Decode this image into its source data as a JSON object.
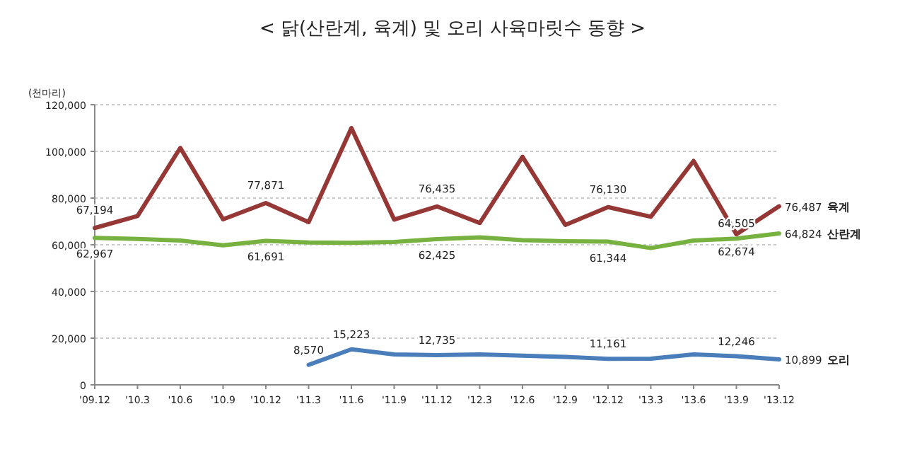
{
  "chart_data": {
    "type": "line",
    "title": "< 닭(산란계, 육계) 및 오리 사육마릿수 동향 >",
    "ylabel": "(천마리)",
    "categories": [
      "'09.12",
      "'10.3",
      "'10.6",
      "'10.9",
      "'10.12",
      "'11.3",
      "'11.6",
      "'11.9",
      "'11.12",
      "'12.3",
      "'12.6",
      "'12.9",
      "'12.12",
      "'13.3",
      "'13.6",
      "'13.9",
      "'13.12"
    ],
    "ylim": [
      0,
      120000
    ],
    "yticks": [
      {
        "value": 0,
        "label": "0"
      },
      {
        "value": 20000,
        "label": "20,000"
      },
      {
        "value": 40000,
        "label": "40,000"
      },
      {
        "value": 60000,
        "label": "60,000"
      },
      {
        "value": 80000,
        "label": "80,000"
      },
      {
        "value": 100000,
        "label": "100,000"
      },
      {
        "value": 120000,
        "label": "120,000"
      }
    ],
    "grid": "y",
    "series": [
      {
        "name": "육계",
        "color": "#953735",
        "values": [
          67194,
          72300,
          101500,
          70900,
          77871,
          69700,
          110000,
          70800,
          76435,
          69300,
          97700,
          68500,
          76130,
          72000,
          95900,
          64505,
          76487
        ],
        "value_labels": [
          "67,194",
          null,
          null,
          null,
          "77,871",
          null,
          null,
          null,
          "76,435",
          null,
          null,
          null,
          "76,130",
          null,
          null,
          "64,505",
          "76,487"
        ]
      },
      {
        "name": "산란계",
        "color": "#77b140",
        "values": [
          62967,
          62500,
          61800,
          59800,
          61691,
          61000,
          60800,
          61200,
          62425,
          63200,
          62000,
          61500,
          61344,
          58600,
          61800,
          62674,
          64824
        ],
        "value_labels": [
          "62,967",
          null,
          null,
          null,
          "61,691",
          null,
          null,
          null,
          "62,425",
          null,
          null,
          null,
          "61,344",
          null,
          null,
          "62,674",
          "64,824"
        ]
      },
      {
        "name": "오리",
        "color": "#4a7ebb",
        "values": [
          null,
          null,
          null,
          null,
          null,
          8570,
          15223,
          13000,
          12735,
          13000,
          12500,
          12000,
          11161,
          11200,
          13000,
          12246,
          10899
        ],
        "value_labels": [
          null,
          null,
          null,
          null,
          null,
          "8,570",
          "15,223",
          null,
          "12,735",
          null,
          null,
          null,
          "11,161",
          null,
          null,
          "12,246",
          "10,899"
        ]
      }
    ]
  }
}
